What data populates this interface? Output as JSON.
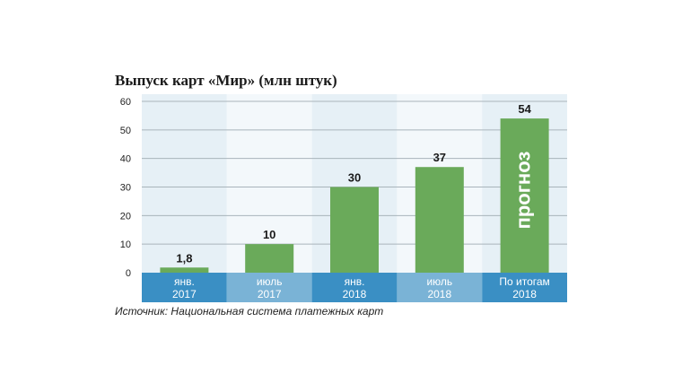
{
  "title": "Выпуск карт «Мир» (млн штук)",
  "source": "Источник: Национальная система платежных карт",
  "chart_data": {
    "type": "bar",
    "title": "Выпуск карт «Мир» (млн штук)",
    "categories": [
      [
        "янв.",
        "2017"
      ],
      [
        "июль",
        "2017"
      ],
      [
        "янв.",
        "2018"
      ],
      [
        "июль",
        "2018"
      ],
      [
        "По итогам",
        "2018"
      ]
    ],
    "values": [
      1.8,
      10,
      30,
      37,
      54
    ],
    "value_labels": [
      "1,8",
      "10",
      "30",
      "37",
      "54"
    ],
    "annotations": [
      {
        "category_index": 4,
        "text": "прогноз",
        "orientation": "vertical"
      }
    ],
    "ylim": [
      0,
      60
    ],
    "yticks": [
      0,
      10,
      20,
      30,
      40,
      50,
      60
    ],
    "grid": true,
    "colors": {
      "bar": "#6aaa5a",
      "column_band_a": "#e6f0f6",
      "column_band_b": "#f3f8fb",
      "category_band_a": "#3a8fc4",
      "category_band_b": "#7ab3d6",
      "gridline": "#a9b4bb"
    }
  }
}
